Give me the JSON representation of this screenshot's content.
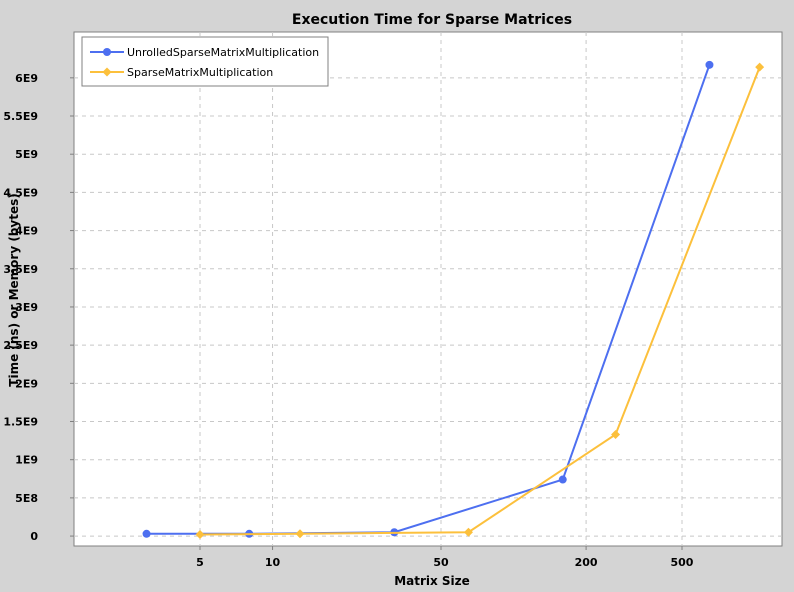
{
  "chart_data": {
    "type": "line",
    "title": "Execution Time for Sparse Matrices",
    "xlabel": "Matrix Size",
    "ylabel": "Time (ns) or Memory (bytes)",
    "x_scale": "log",
    "xlim": [
      1.5,
      1300
    ],
    "ylim": [
      -130000000,
      6600000000
    ],
    "x_ticks": [
      5,
      10,
      50,
      200,
      500
    ],
    "x_tick_labels": [
      "5",
      "10",
      "50",
      "200",
      "500"
    ],
    "y_ticks": [
      0,
      500000000,
      1000000000,
      1500000000,
      2000000000,
      2500000000,
      3000000000,
      3500000000,
      4000000000,
      4500000000,
      5000000000,
      5500000000,
      6000000000
    ],
    "y_tick_labels": [
      "0",
      "5E8",
      "1E9",
      "1.5E9",
      "2E9",
      "2.5E9",
      "3E9",
      "3.5E9",
      "4E9",
      "4.5E9",
      "5E9",
      "5.5E9",
      "6E9"
    ],
    "grid": true,
    "legend_position": "top-left",
    "series": [
      {
        "name": "UnrolledSparseMatrixMultiplication",
        "color": "#4d6ff0",
        "marker": "circle",
        "x": [
          3,
          8,
          32,
          160,
          650
        ],
        "y": [
          30000000,
          30000000,
          50000000,
          740000000,
          6170000000
        ]
      },
      {
        "name": "SparseMatrixMultiplication",
        "color": "#fcc03c",
        "marker": "diamond",
        "x": [
          5,
          13,
          65,
          265,
          1050
        ],
        "y": [
          20000000,
          30000000,
          50000000,
          1330000000,
          6140000000
        ]
      }
    ]
  }
}
